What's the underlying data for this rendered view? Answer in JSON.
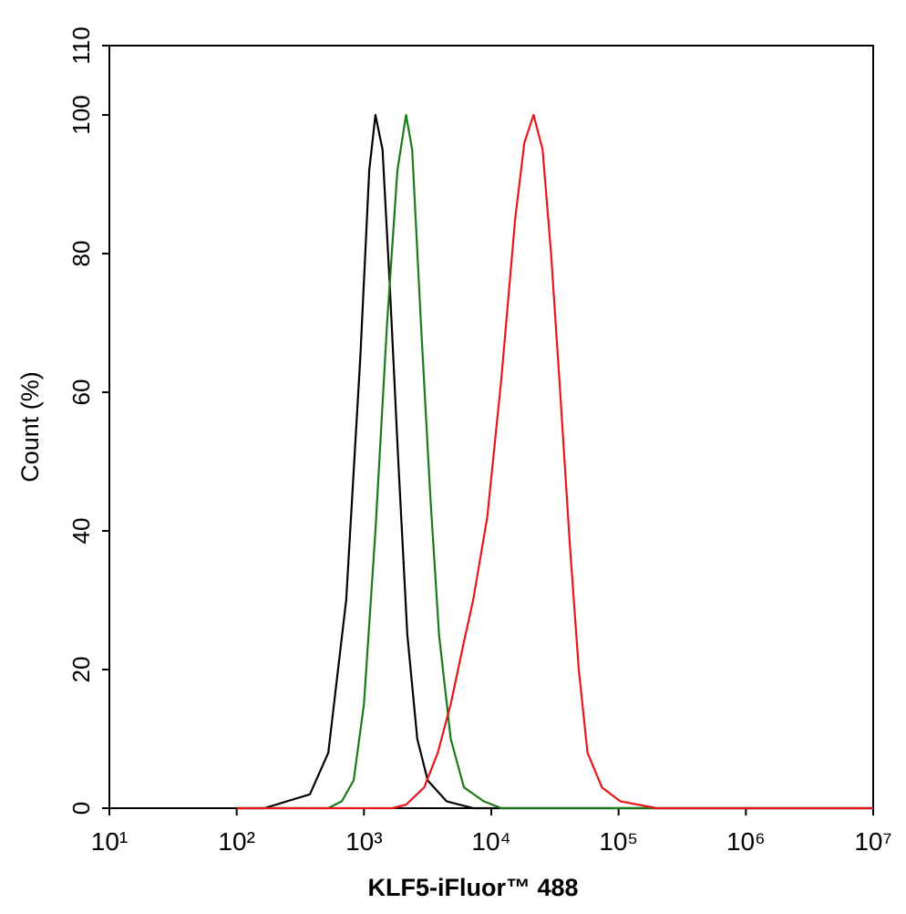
{
  "chart_data": {
    "type": "line",
    "x_label": "KLF5-iFluor™ 488",
    "y_label": "Count  (%)",
    "xscale": "log",
    "xlim": [
      10,
      10000000
    ],
    "xticks": [
      {
        "value": 10,
        "label": "10¹"
      },
      {
        "value": 100,
        "label": "10²"
      },
      {
        "value": 1000,
        "label": "10³"
      },
      {
        "value": 10000,
        "label": "10⁴"
      },
      {
        "value": 100000,
        "label": "10⁵"
      },
      {
        "value": 1000000,
        "label": "10⁶"
      },
      {
        "value": 10000000,
        "label": "10⁷"
      }
    ],
    "ylim": [
      0,
      110
    ],
    "yticks": [
      0,
      20,
      40,
      60,
      80,
      100,
      110
    ],
    "series": [
      {
        "color": "#000000",
        "x": [
          100,
          165,
          376,
          525,
          725,
          935,
          1100,
          1230,
          1400,
          1600,
          1860,
          2190,
          2620,
          3170,
          4450,
          7200,
          10000000
        ],
        "values": [
          0,
          0,
          2,
          8,
          30,
          65,
          92,
          100,
          95,
          75,
          50,
          25,
          10,
          4,
          1,
          0,
          0
        ]
      },
      {
        "color": "#1a7a1a",
        "x": [
          100,
          525,
          670,
          830,
          1000,
          1230,
          1520,
          1830,
          2140,
          2390,
          2800,
          3320,
          3890,
          4800,
          6100,
          8700,
          12000,
          10000000
        ],
        "values": [
          0,
          0,
          1,
          4,
          15,
          40,
          70,
          92,
          100,
          95,
          70,
          45,
          25,
          10,
          3,
          1,
          0,
          0
        ]
      },
      {
        "color": "#e8151b",
        "x": [
          100,
          1660,
          2140,
          2970,
          3800,
          4800,
          6100,
          7200,
          9300,
          12000,
          15400,
          18200,
          21500,
          25300,
          29500,
          34800,
          41400,
          48700,
          57000,
          74000,
          103000,
          199000,
          10000000
        ],
        "values": [
          0,
          0,
          0.5,
          3,
          8,
          15,
          24,
          30,
          42,
          62,
          85,
          96,
          100,
          95,
          80,
          60,
          38,
          20,
          8,
          3,
          1,
          0,
          0
        ]
      }
    ]
  }
}
